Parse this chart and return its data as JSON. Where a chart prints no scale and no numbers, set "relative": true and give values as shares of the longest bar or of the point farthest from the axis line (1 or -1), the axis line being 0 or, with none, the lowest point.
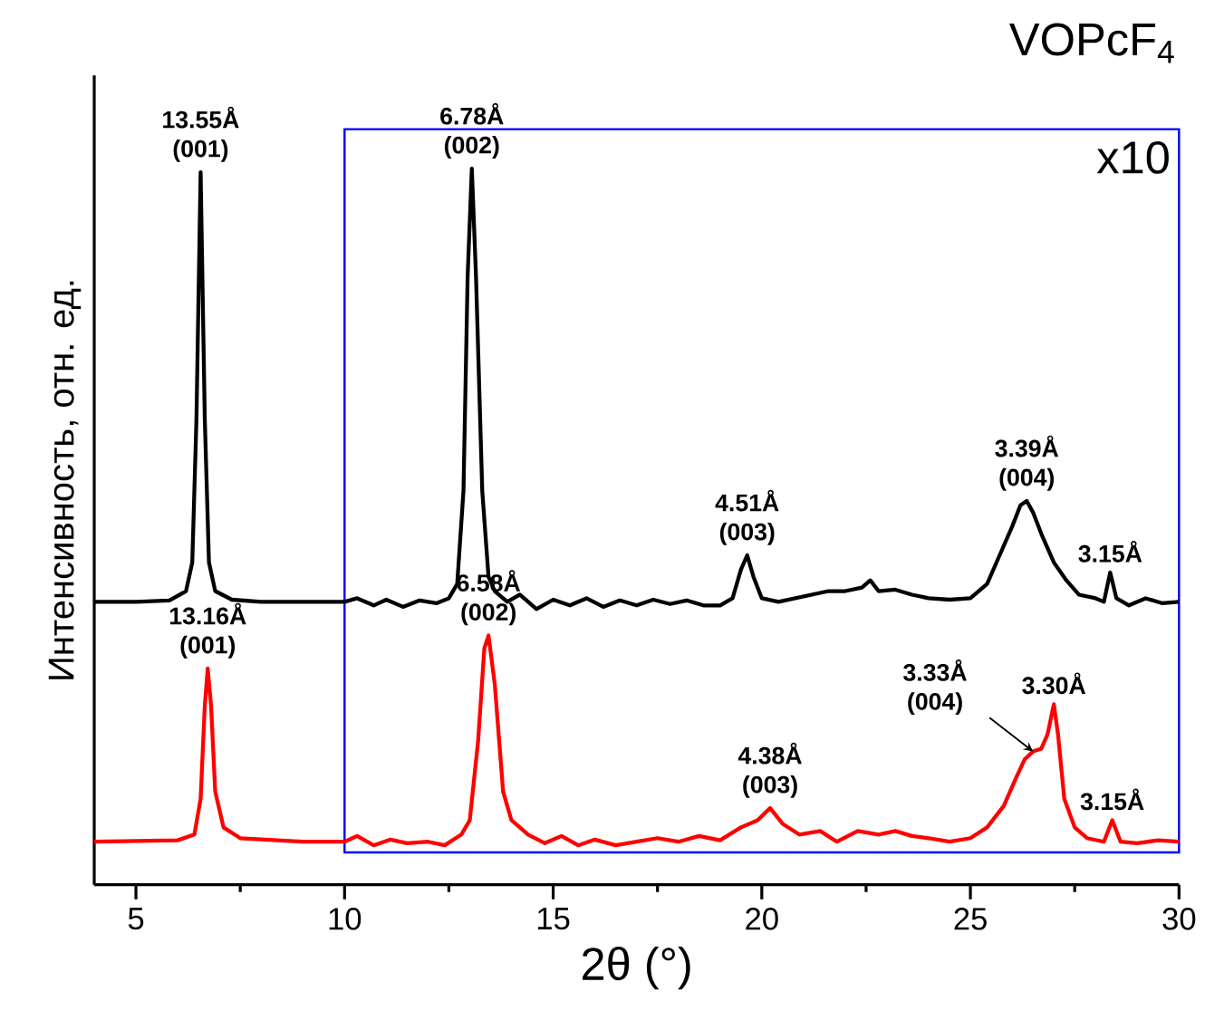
{
  "chart_data": {
    "type": "line",
    "relative": true,
    "title": "VOPcF$_{4}$",
    "xlabel": "2θ (°)",
    "ylabel": "Интенсивность, отн. ед.",
    "xlim": [
      4,
      30
    ],
    "xticks": [
      5,
      10,
      15,
      20,
      25,
      30
    ],
    "series": [
      {
        "color": "#000000",
        "x": [
          4,
          5,
          5.8,
          6.2,
          6.35,
          6.45,
          6.55,
          6.65,
          6.75,
          6.9,
          7.3,
          8,
          9,
          10,
          10.3,
          10.7,
          11,
          11.4,
          11.8,
          12.2,
          12.5,
          12.7,
          12.85,
          12.95,
          13.05,
          13.15,
          13.3,
          13.45,
          13.6,
          13.9,
          14.2,
          14.6,
          15,
          15.4,
          15.8,
          16.2,
          16.6,
          17,
          17.4,
          17.8,
          18.2,
          18.6,
          19,
          19.3,
          19.5,
          19.65,
          19.8,
          20,
          20.4,
          20.8,
          21.2,
          21.6,
          22,
          22.4,
          22.6,
          22.8,
          23.2,
          23.6,
          24,
          24.5,
          25,
          25.4,
          25.7,
          26,
          26.2,
          26.35,
          26.5,
          26.7,
          27,
          27.3,
          27.6,
          28,
          28.2,
          28.35,
          28.5,
          28.8,
          29.2,
          29.6,
          30
        ],
        "values": [
          0.395,
          0.395,
          0.397,
          0.41,
          0.45,
          0.65,
          0.995,
          0.65,
          0.45,
          0.41,
          0.398,
          0.395,
          0.395,
          0.395,
          0.4,
          0.39,
          0.398,
          0.388,
          0.397,
          0.393,
          0.4,
          0.42,
          0.55,
          0.85,
          1.0,
          0.85,
          0.55,
          0.43,
          0.41,
          0.395,
          0.405,
          0.385,
          0.398,
          0.39,
          0.4,
          0.388,
          0.397,
          0.39,
          0.398,
          0.392,
          0.397,
          0.39,
          0.39,
          0.4,
          0.44,
          0.46,
          0.43,
          0.4,
          0.395,
          0.4,
          0.405,
          0.41,
          0.41,
          0.415,
          0.425,
          0.41,
          0.412,
          0.405,
          0.4,
          0.398,
          0.4,
          0.42,
          0.46,
          0.5,
          0.53,
          0.536,
          0.52,
          0.49,
          0.45,
          0.425,
          0.405,
          0.4,
          0.395,
          0.436,
          0.4,
          0.39,
          0.4,
          0.393,
          0.395
        ]
      },
      {
        "color": "#ff0000",
        "x": [
          4,
          6,
          6.4,
          6.55,
          6.65,
          6.72,
          6.8,
          6.9,
          7.1,
          7.5,
          9,
          10,
          10.3,
          10.7,
          11.1,
          11.5,
          12,
          12.4,
          12.8,
          13.0,
          13.2,
          13.35,
          13.45,
          13.6,
          13.8,
          14.0,
          14.4,
          14.8,
          15.2,
          15.6,
          16,
          16.5,
          17,
          17.5,
          18,
          18.5,
          19,
          19.5,
          19.9,
          20.2,
          20.5,
          20.9,
          21.4,
          21.8,
          22.3,
          22.8,
          23.2,
          23.6,
          24,
          24.5,
          25,
          25.4,
          25.8,
          26.1,
          26.3,
          26.5,
          26.7,
          26.85,
          27.0,
          27.1,
          27.25,
          27.5,
          27.8,
          28.2,
          28.4,
          28.6,
          29,
          29.5,
          30
        ],
        "values": [
          0.06,
          0.062,
          0.07,
          0.12,
          0.25,
          0.302,
          0.25,
          0.13,
          0.08,
          0.065,
          0.06,
          0.06,
          0.068,
          0.055,
          0.063,
          0.058,
          0.06,
          0.055,
          0.07,
          0.09,
          0.2,
          0.33,
          0.348,
          0.28,
          0.13,
          0.09,
          0.07,
          0.058,
          0.068,
          0.055,
          0.063,
          0.055,
          0.06,
          0.065,
          0.06,
          0.068,
          0.062,
          0.08,
          0.09,
          0.107,
          0.085,
          0.07,
          0.075,
          0.06,
          0.075,
          0.07,
          0.075,
          0.068,
          0.065,
          0.06,
          0.065,
          0.08,
          0.11,
          0.15,
          0.175,
          0.186,
          0.19,
          0.21,
          0.252,
          0.21,
          0.12,
          0.08,
          0.065,
          0.06,
          0.09,
          0.06,
          0.058,
          0.062,
          0.06
        ]
      }
    ],
    "bands": [
      {
        "axis": "x",
        "from": 10,
        "to": 30,
        "label": "x10",
        "color": "#0000ff"
      }
    ],
    "annotations": [
      {
        "text": "13.55Å (001)",
        "x": 6.55,
        "y": 0.995
      },
      {
        "text": "6.78Å (002)",
        "x": 13.05,
        "y": 1.0
      },
      {
        "text": "4.51Å (003)",
        "x": 19.65,
        "y": 0.46
      },
      {
        "text": "3.39Å (004)",
        "x": 26.35,
        "y": 0.536
      },
      {
        "text": "3.15Å",
        "x": 28.35,
        "y": 0.436
      },
      {
        "text": "13.16Å (001)",
        "x": 6.72,
        "y": 0.302
      },
      {
        "text": "6.58Å (002)",
        "x": 13.45,
        "y": 0.348
      },
      {
        "text": "4.38Å (003)",
        "x": 20.2,
        "y": 0.107
      },
      {
        "text": "3.33Å (004)",
        "x": 26.5,
        "y": 0.186
      },
      {
        "text": "3.30Å",
        "x": 27.0,
        "y": 0.252
      },
      {
        "text": "3.15Å",
        "x": 28.4,
        "y": 0.09
      }
    ]
  }
}
